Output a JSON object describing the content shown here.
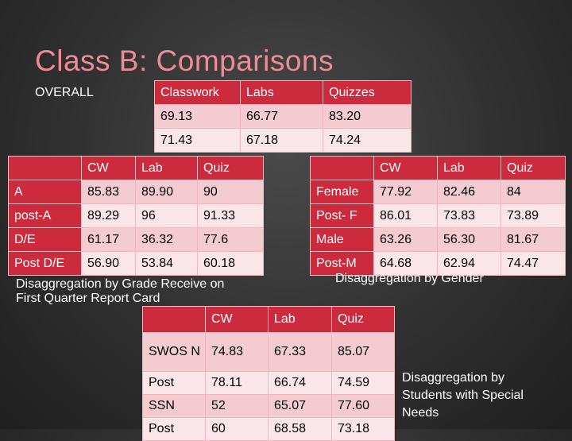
{
  "slide": {
    "title": "Class B: Comparisons",
    "overall_label": "OVERALL"
  },
  "overall_table": {
    "headers": [
      "Classwork",
      "Labs",
      "Quizzes"
    ],
    "rows": [
      [
        "69.13",
        "66.77",
        "83.20"
      ],
      [
        "71.43",
        "67.18",
        "74.24"
      ]
    ]
  },
  "grade_table": {
    "headers": [
      "",
      "CW",
      "Lab",
      "Quiz"
    ],
    "rows": [
      [
        "A",
        "85.83",
        "89.90",
        "90"
      ],
      [
        "post-A",
        "89.29",
        "96",
        "91.33"
      ],
      [
        "D/E",
        "61.17",
        "36.32",
        "77.6"
      ],
      [
        "Post D/E",
        "56.90",
        "53.84",
        "60.18"
      ]
    ],
    "caption": "Disaggregation by Grade Receive on First Quarter Report Card"
  },
  "gender_table": {
    "headers": [
      "",
      "CW",
      "Lab",
      "Quiz"
    ],
    "rows": [
      [
        "Female",
        "77.92",
        "82.46",
        "84"
      ],
      [
        "Post- F",
        "86.01",
        "73.83",
        "73.89"
      ],
      [
        "Male",
        "63.26",
        "56.30",
        "81.67"
      ],
      [
        "Post-M",
        "64.68",
        "62.94",
        "74.47"
      ]
    ],
    "caption": "Disaggregation by Gender"
  },
  "special_table": {
    "headers": [
      "",
      "CW",
      "Lab",
      "Quiz"
    ],
    "rows": [
      [
        "SWOS N",
        "74.83",
        "67.33",
        "85.07"
      ],
      [
        "Post",
        "78.11",
        "66.74",
        "74.59"
      ],
      [
        "SSN",
        "52",
        "65.07",
        "77.60"
      ],
      [
        "Post",
        "60",
        "68.58",
        "73.18"
      ]
    ],
    "caption": "Disaggregation by Students with Special Needs"
  },
  "colors": {
    "title": "#f08a94",
    "header": "#cc2b3e",
    "row_odd": "#f5cbd2",
    "row_even": "#fae6e9"
  }
}
